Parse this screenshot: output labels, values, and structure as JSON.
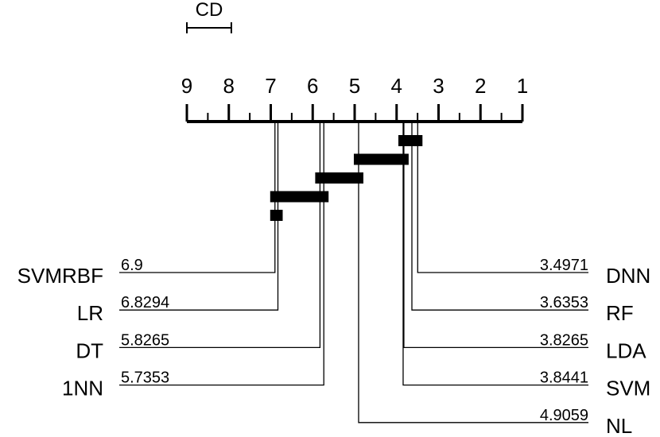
{
  "chart_data": {
    "type": "cd_diagram",
    "cd_label": "CD",
    "cd": 1.06,
    "xlim": [
      9,
      1
    ],
    "xticks": [
      9,
      8,
      7,
      6,
      5,
      4,
      3,
      2,
      1
    ],
    "minor_xticks": [
      8.5,
      7.5,
      6.5,
      5.5,
      4.5,
      3.5,
      2.5,
      1.5
    ],
    "methods": [
      "SVMRBF",
      "LR",
      "DT",
      "1NN",
      "DNN",
      "RF",
      "LDA",
      "SVM",
      "NL"
    ],
    "values": [
      6.9,
      6.8294,
      5.8265,
      5.7353,
      3.4971,
      3.6353,
      3.8265,
      3.8441,
      4.9059
    ],
    "cliques": [
      [
        "DNN",
        "RF",
        "LDA",
        "SVM"
      ],
      [
        "NL",
        "SVM",
        "LDA"
      ],
      [
        "DT",
        "1NN",
        "NL"
      ],
      [
        "SVMRBF",
        "LR",
        "DT",
        "1NN"
      ],
      [
        "SVMRBF",
        "LR"
      ]
    ],
    "color": "#000000"
  }
}
